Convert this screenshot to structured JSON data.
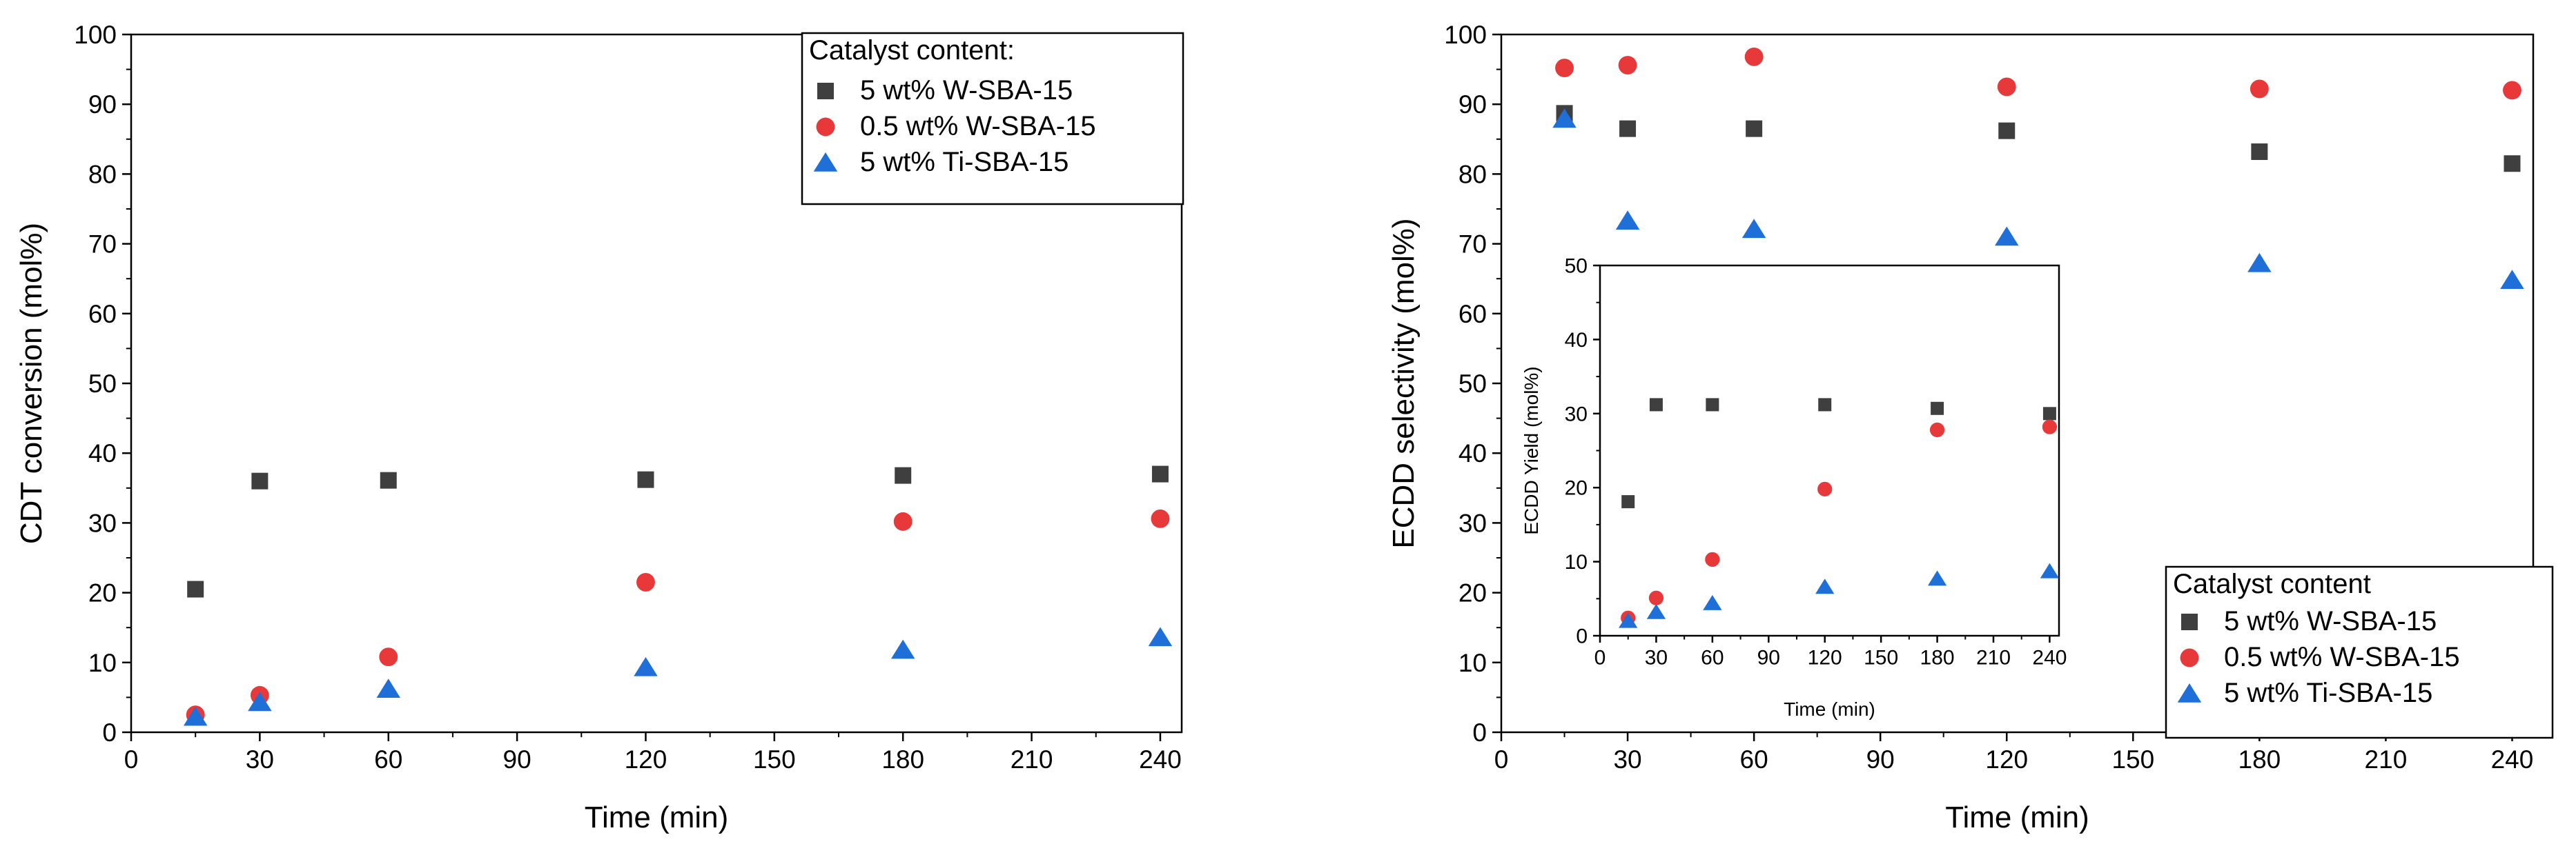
{
  "chart_data": [
    {
      "id": "left",
      "type": "scatter",
      "title": "",
      "xlabel": "Time (min)",
      "ylabel": "CDT conversion (mol%)",
      "xlim": [
        0,
        245
      ],
      "ylim": [
        0,
        100
      ],
      "xticks": [
        0,
        30,
        60,
        90,
        120,
        150,
        180,
        210,
        240
      ],
      "yticks": [
        0,
        10,
        20,
        30,
        40,
        50,
        60,
        70,
        80,
        90,
        100
      ],
      "grid": false,
      "legend_title": "Catalyst content:",
      "legend_position": "top-right",
      "series": [
        {
          "name": "5 wt% W-SBA-15",
          "marker": "square",
          "color": "#3f3f3f",
          "x": [
            15,
            30,
            60,
            120,
            180,
            240
          ],
          "y": [
            20.5,
            36.0,
            36.1,
            36.2,
            36.8,
            37.0
          ]
        },
        {
          "name": "0.5 wt% W-SBA-15",
          "marker": "circle",
          "color": "#e8393a",
          "x": [
            15,
            30,
            60,
            120,
            180,
            240
          ],
          "y": [
            2.5,
            5.3,
            10.8,
            21.5,
            30.2,
            30.6
          ]
        },
        {
          "name": "5 wt% Ti-SBA-15",
          "marker": "triangle",
          "color": "#1f6fd8",
          "x": [
            15,
            30,
            60,
            120,
            180,
            240
          ],
          "y": [
            2.2,
            4.3,
            6.2,
            9.3,
            11.8,
            13.6
          ]
        }
      ]
    },
    {
      "id": "right",
      "type": "scatter",
      "title": "",
      "xlabel": "Time (min)",
      "ylabel": "ECDD selectivity (mol%)",
      "xlim": [
        0,
        245
      ],
      "ylim": [
        0,
        100
      ],
      "xticks": [
        0,
        30,
        60,
        90,
        120,
        150,
        180,
        210,
        240
      ],
      "yticks": [
        0,
        10,
        20,
        30,
        40,
        50,
        60,
        70,
        80,
        90,
        100
      ],
      "grid": false,
      "legend_title": "Catalyst content",
      "legend_position": "bottom-right",
      "series": [
        {
          "name": "5 wt% W-SBA-15",
          "marker": "square",
          "color": "#3f3f3f",
          "x": [
            15,
            30,
            60,
            120,
            180,
            240
          ],
          "y": [
            88.7,
            86.5,
            86.5,
            86.2,
            83.2,
            81.5
          ]
        },
        {
          "name": "0.5 wt% W-SBA-15",
          "marker": "circle",
          "color": "#e8393a",
          "x": [
            15,
            30,
            60,
            120,
            180,
            240
          ],
          "y": [
            95.2,
            95.6,
            96.8,
            92.5,
            92.2,
            92.0
          ]
        },
        {
          "name": "5 wt% Ti-SBA-15",
          "marker": "triangle",
          "color": "#1f6fd8",
          "x": [
            15,
            30,
            60,
            120,
            180,
            240
          ],
          "y": [
            87.9,
            73.3,
            72.1,
            71.0,
            67.2,
            64.8
          ]
        }
      ]
    },
    {
      "id": "inset",
      "type": "scatter",
      "title": "",
      "xlabel": "Time (min)",
      "ylabel": "ECDD Yield (mol%)",
      "xlim": [
        0,
        245
      ],
      "ylim": [
        0,
        50
      ],
      "xticks": [
        0,
        30,
        60,
        90,
        120,
        150,
        180,
        210,
        240
      ],
      "yticks": [
        0,
        10,
        20,
        30,
        40,
        50
      ],
      "grid": false,
      "legend_title": "",
      "legend_position": "none",
      "series": [
        {
          "name": "5 wt% W-SBA-15",
          "marker": "square",
          "color": "#3f3f3f",
          "x": [
            15,
            30,
            60,
            120,
            180,
            240
          ],
          "y": [
            18.1,
            31.2,
            31.2,
            31.2,
            30.7,
            30.0
          ]
        },
        {
          "name": "0.5 wt% W-SBA-15",
          "marker": "circle",
          "color": "#e8393a",
          "x": [
            15,
            30,
            60,
            120,
            180,
            240
          ],
          "y": [
            2.4,
            5.1,
            10.3,
            19.8,
            27.8,
            28.2
          ]
        },
        {
          "name": "5 wt% Ti-SBA-15",
          "marker": "triangle",
          "color": "#1f6fd8",
          "x": [
            15,
            30,
            60,
            120,
            180,
            240
          ],
          "y": [
            2.0,
            3.2,
            4.4,
            6.6,
            7.7,
            8.7
          ]
        }
      ]
    }
  ]
}
